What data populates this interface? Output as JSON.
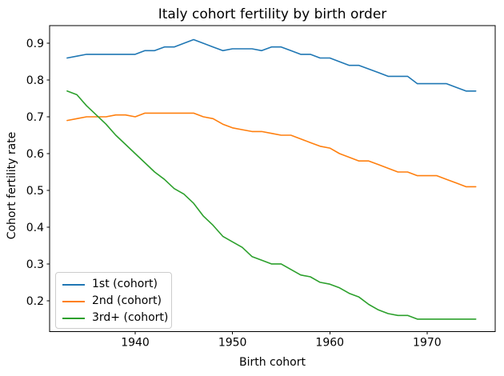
{
  "figure": {
    "title": "Italy cohort fertility by birth order",
    "xlabel": "Birth cohort",
    "ylabel": "Cohort fertility rate"
  },
  "chart_data": {
    "type": "line",
    "title": "Italy cohort fertility by birth order",
    "xlabel": "Birth cohort",
    "ylabel": "Cohort fertility rate",
    "x": [
      1933,
      1934,
      1935,
      1936,
      1937,
      1938,
      1939,
      1940,
      1941,
      1942,
      1943,
      1944,
      1945,
      1946,
      1947,
      1948,
      1949,
      1950,
      1951,
      1952,
      1953,
      1954,
      1955,
      1956,
      1957,
      1958,
      1959,
      1960,
      1961,
      1962,
      1963,
      1964,
      1965,
      1966,
      1967,
      1968,
      1969,
      1970,
      1971,
      1972,
      1973,
      1974,
      1975
    ],
    "series": [
      {
        "name": "1st (cohort)",
        "color": "#1f77b4",
        "values": [
          0.86,
          0.865,
          0.87,
          0.87,
          0.87,
          0.87,
          0.87,
          0.87,
          0.88,
          0.88,
          0.89,
          0.89,
          0.9,
          0.91,
          0.9,
          0.89,
          0.88,
          0.885,
          0.885,
          0.885,
          0.88,
          0.89,
          0.89,
          0.88,
          0.87,
          0.87,
          0.86,
          0.86,
          0.85,
          0.84,
          0.84,
          0.83,
          0.82,
          0.81,
          0.81,
          0.81,
          0.79,
          0.79,
          0.79,
          0.79,
          0.78,
          0.77,
          0.77
        ]
      },
      {
        "name": "2nd (cohort)",
        "color": "#ff7f0e",
        "values": [
          0.69,
          0.695,
          0.7,
          0.7,
          0.7,
          0.705,
          0.705,
          0.7,
          0.71,
          0.71,
          0.71,
          0.71,
          0.71,
          0.71,
          0.7,
          0.695,
          0.68,
          0.67,
          0.665,
          0.66,
          0.66,
          0.655,
          0.65,
          0.65,
          0.64,
          0.63,
          0.62,
          0.615,
          0.6,
          0.59,
          0.58,
          0.58,
          0.57,
          0.56,
          0.55,
          0.55,
          0.54,
          0.54,
          0.54,
          0.53,
          0.52,
          0.51,
          0.51
        ]
      },
      {
        "name": "3rd+ (cohort)",
        "color": "#2ca02c",
        "values": [
          0.77,
          0.76,
          0.73,
          0.705,
          0.68,
          0.65,
          0.625,
          0.6,
          0.575,
          0.55,
          0.53,
          0.505,
          0.49,
          0.465,
          0.43,
          0.405,
          0.375,
          0.36,
          0.345,
          0.32,
          0.31,
          0.3,
          0.3,
          0.285,
          0.27,
          0.265,
          0.25,
          0.245,
          0.235,
          0.22,
          0.21,
          0.19,
          0.175,
          0.165,
          0.16,
          0.16,
          0.15,
          0.15,
          0.15,
          0.15,
          0.15,
          0.15,
          0.15
        ]
      }
    ],
    "xticks": [
      1940,
      1950,
      1960,
      1970
    ],
    "yticks": [
      0.2,
      0.3,
      0.4,
      0.5,
      0.6,
      0.7,
      0.8,
      0.9
    ],
    "xlim": [
      1931.2,
      1977.0
    ],
    "ylim": [
      0.116,
      0.948
    ],
    "grid": false,
    "legend_position": "lower left"
  }
}
